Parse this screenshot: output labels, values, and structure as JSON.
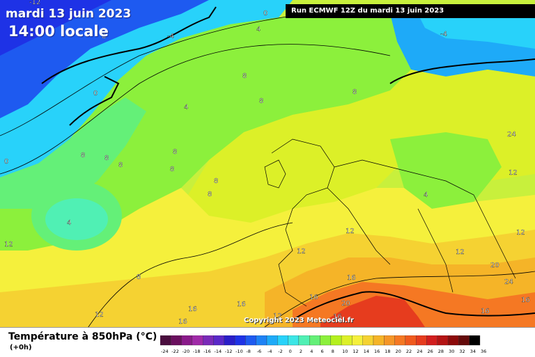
{
  "header": {
    "date": "mardi 13 juin 2023",
    "time": "14:00 locale",
    "run": "Run ECMWF 12Z du mardi 13 juin 2023"
  },
  "copyright": "Copyright 2023 Meteociel.fr",
  "legend": {
    "title": "Température à 850hPa (°C)",
    "subtitle": "(+0h)",
    "ticks": [
      "-24",
      "-22",
      "-20",
      "-18",
      "-16",
      "-14",
      "-12",
      "-10",
      "-8",
      "-6",
      "-4",
      "-2",
      "0",
      "2",
      "4",
      "6",
      "8",
      "10",
      "12",
      "14",
      "16",
      "18",
      "20",
      "22",
      "24",
      "26",
      "28",
      "30",
      "32",
      "34",
      "36"
    ],
    "colors": [
      "#4a0d3e",
      "#6a0f5e",
      "#8a1a8a",
      "#a02aa8",
      "#7a2ab8",
      "#5a28c8",
      "#2a1ec8",
      "#1e32e6",
      "#1e5af0",
      "#1e82f5",
      "#1eaaf8",
      "#28d2fa",
      "#3ce6e6",
      "#50f0b4",
      "#64f078",
      "#8cf03c",
      "#b4f01e",
      "#dcf028",
      "#f5f03c",
      "#f5d232",
      "#f5b428",
      "#f59628",
      "#f57823",
      "#f05a1e",
      "#e63c1e",
      "#d21e1e",
      "#b41414",
      "#8c0a0a",
      "#640a0a",
      "#000000"
    ]
  },
  "map_labels": [
    {
      "text": "-12",
      "color": "#000"
    },
    {
      "text": "0"
    },
    {
      "text": "4"
    },
    {
      "text": "-4"
    },
    {
      "text": "8"
    },
    {
      "text": "-4"
    },
    {
      "text": "0"
    },
    {
      "text": "8"
    },
    {
      "text": "8"
    },
    {
      "text": "8"
    },
    {
      "text": "4"
    },
    {
      "text": "8"
    },
    {
      "text": "8"
    },
    {
      "text": "8"
    },
    {
      "text": "8"
    },
    {
      "text": "8"
    },
    {
      "text": "8"
    },
    {
      "text": "8"
    },
    {
      "text": "0"
    },
    {
      "text": "4"
    },
    {
      "text": "12"
    },
    {
      "text": "8"
    },
    {
      "text": "4"
    },
    {
      "text": "12"
    },
    {
      "text": "12"
    },
    {
      "text": "12"
    },
    {
      "text": "12"
    },
    {
      "text": "12"
    },
    {
      "text": "16"
    },
    {
      "text": "16"
    },
    {
      "text": "16"
    },
    {
      "text": "20"
    },
    {
      "text": "24"
    },
    {
      "text": "16"
    },
    {
      "text": "16"
    },
    {
      "text": "16"
    },
    {
      "text": "16"
    },
    {
      "text": "16"
    },
    {
      "text": "12"
    },
    {
      "text": "12"
    },
    {
      "text": "20"
    },
    {
      "text": "24"
    },
    {
      "text": "8"
    }
  ]
}
